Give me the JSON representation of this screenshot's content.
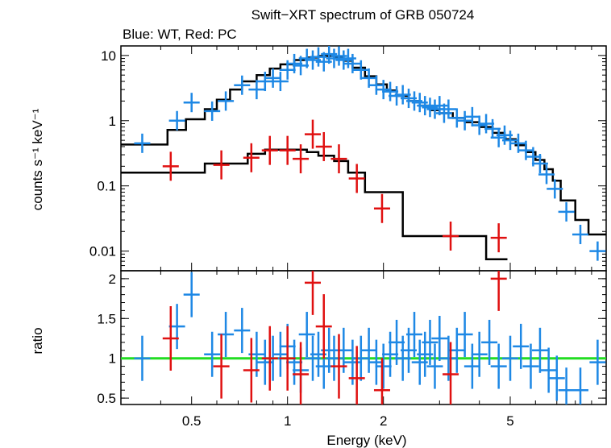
{
  "title": "Swift−XRT spectrum of GRB 050724",
  "subtitle": "Blue: WT, Red: PC",
  "colors": {
    "wt": "#1e88e5",
    "pc": "#e01010",
    "model": "#000000",
    "unity": "#22dd22"
  },
  "chart_data": [
    {
      "type": "scatter",
      "panel": "spectrum",
      "ylabel": "counts s⁻¹ keV⁻¹",
      "xscale": "log",
      "yscale": "log",
      "xlim": [
        0.3,
        10
      ],
      "ylim": [
        0.005,
        14
      ],
      "ytick_labels": [
        "10",
        "1",
        "0.1",
        "0.01"
      ],
      "yticks": [
        10,
        1,
        0.1,
        0.01
      ],
      "series": [
        {
          "name": "WT",
          "color": "#1e88e5",
          "points": [
            [
              0.35,
              0.45
            ],
            [
              0.45,
              1.0
            ],
            [
              0.5,
              1.9
            ],
            [
              0.58,
              1.4
            ],
            [
              0.64,
              2.0
            ],
            [
              0.72,
              3.5
            ],
            [
              0.8,
              3.0
            ],
            [
              0.85,
              4.0
            ],
            [
              0.9,
              4.5
            ],
            [
              0.95,
              4.0
            ],
            [
              1.0,
              6.0
            ],
            [
              1.05,
              7.5
            ],
            [
              1.1,
              7.0
            ],
            [
              1.15,
              9.0
            ],
            [
              1.2,
              8.5
            ],
            [
              1.25,
              9.5
            ],
            [
              1.3,
              8.0
            ],
            [
              1.35,
              10.5
            ],
            [
              1.4,
              9.0
            ],
            [
              1.45,
              9.8
            ],
            [
              1.5,
              8.5
            ],
            [
              1.55,
              9.0
            ],
            [
              1.6,
              7.5
            ],
            [
              1.7,
              6.0
            ],
            [
              1.8,
              4.5
            ],
            [
              1.9,
              3.5
            ],
            [
              2.0,
              3.0
            ],
            [
              2.1,
              2.8
            ],
            [
              2.2,
              2.4
            ],
            [
              2.3,
              2.5
            ],
            [
              2.4,
              2.2
            ],
            [
              2.5,
              2.0
            ],
            [
              2.6,
              1.9
            ],
            [
              2.7,
              1.7
            ],
            [
              2.8,
              1.6
            ],
            [
              2.9,
              1.5
            ],
            [
              3.0,
              1.7
            ],
            [
              3.1,
              1.3
            ],
            [
              3.2,
              1.5
            ],
            [
              3.4,
              1.1
            ],
            [
              3.6,
              1.0
            ],
            [
              3.8,
              1.15
            ],
            [
              4.0,
              0.85
            ],
            [
              4.2,
              0.9
            ],
            [
              4.4,
              0.75
            ],
            [
              4.6,
              0.55
            ],
            [
              4.8,
              0.6
            ],
            [
              5.0,
              0.5
            ],
            [
              5.3,
              0.45
            ],
            [
              5.6,
              0.35
            ],
            [
              5.9,
              0.28
            ],
            [
              6.2,
              0.22
            ],
            [
              6.5,
              0.15
            ],
            [
              6.9,
              0.09
            ],
            [
              7.5,
              0.04
            ],
            [
              8.3,
              0.018
            ],
            [
              9.4,
              0.01
            ]
          ]
        },
        {
          "name": "PC",
          "color": "#e01010",
          "points": [
            [
              0.43,
              0.2
            ],
            [
              0.62,
              0.21
            ],
            [
              0.77,
              0.27
            ],
            [
              0.88,
              0.35
            ],
            [
              1.0,
              0.35
            ],
            [
              1.1,
              0.26
            ],
            [
              1.2,
              0.62
            ],
            [
              1.3,
              0.4
            ],
            [
              1.45,
              0.26
            ],
            [
              1.65,
              0.13
            ],
            [
              1.98,
              0.045
            ],
            [
              3.25,
              0.017
            ],
            [
              4.6,
              0.016
            ]
          ]
        },
        {
          "name": "model",
          "color": "#000000",
          "steps": [
            [
              0.3,
              0.43
            ],
            [
              0.42,
              0.43
            ],
            [
              0.42,
              0.72
            ],
            [
              0.48,
              0.72
            ],
            [
              0.48,
              1.05
            ],
            [
              0.55,
              1.05
            ],
            [
              0.55,
              1.5
            ],
            [
              0.6,
              1.5
            ],
            [
              0.6,
              2.1
            ],
            [
              0.66,
              2.1
            ],
            [
              0.66,
              3.0
            ],
            [
              0.72,
              3.0
            ],
            [
              0.72,
              4.0
            ],
            [
              0.8,
              4.0
            ],
            [
              0.8,
              5.0
            ],
            [
              0.88,
              5.0
            ],
            [
              0.88,
              6.3
            ],
            [
              0.95,
              6.3
            ],
            [
              0.95,
              7.3
            ],
            [
              1.05,
              7.3
            ],
            [
              1.05,
              8.5
            ],
            [
              1.15,
              8.5
            ],
            [
              1.15,
              9.3
            ],
            [
              1.25,
              9.3
            ],
            [
              1.25,
              9.8
            ],
            [
              1.4,
              9.8
            ],
            [
              1.4,
              9.3
            ],
            [
              1.5,
              9.3
            ],
            [
              1.5,
              8.3
            ],
            [
              1.6,
              8.3
            ],
            [
              1.6,
              6.5
            ],
            [
              1.75,
              6.5
            ],
            [
              1.75,
              4.8
            ],
            [
              1.9,
              4.8
            ],
            [
              1.9,
              3.6
            ],
            [
              2.05,
              3.6
            ],
            [
              2.05,
              2.9
            ],
            [
              2.2,
              2.9
            ],
            [
              2.2,
              2.4
            ],
            [
              2.4,
              2.4
            ],
            [
              2.4,
              2.0
            ],
            [
              2.6,
              2.0
            ],
            [
              2.6,
              1.7
            ],
            [
              2.8,
              1.7
            ],
            [
              2.8,
              1.45
            ],
            [
              3.0,
              1.45
            ],
            [
              3.0,
              1.3
            ],
            [
              3.3,
              1.3
            ],
            [
              3.3,
              1.1
            ],
            [
              3.6,
              1.1
            ],
            [
              3.6,
              0.95
            ],
            [
              4.0,
              0.95
            ],
            [
              4.0,
              0.8
            ],
            [
              4.4,
              0.8
            ],
            [
              4.4,
              0.65
            ],
            [
              4.8,
              0.65
            ],
            [
              4.8,
              0.52
            ],
            [
              5.2,
              0.52
            ],
            [
              5.2,
              0.42
            ],
            [
              5.6,
              0.42
            ],
            [
              5.6,
              0.33
            ],
            [
              6.0,
              0.33
            ],
            [
              6.0,
              0.25
            ],
            [
              6.4,
              0.25
            ],
            [
              6.4,
              0.18
            ],
            [
              6.8,
              0.18
            ],
            [
              6.8,
              0.12
            ],
            [
              7.2,
              0.12
            ],
            [
              7.2,
              0.06
            ],
            [
              8.0,
              0.06
            ],
            [
              8.0,
              0.03
            ],
            [
              8.8,
              0.03
            ],
            [
              8.8,
              0.018
            ],
            [
              10,
              0.018
            ]
          ]
        },
        {
          "name": "model",
          "color": "#000000",
          "steps": [
            [
              0.3,
              0.16
            ],
            [
              0.55,
              0.16
            ],
            [
              0.55,
              0.22
            ],
            [
              0.75,
              0.22
            ],
            [
              0.75,
              0.31
            ],
            [
              0.85,
              0.31
            ],
            [
              0.85,
              0.36
            ],
            [
              1.15,
              0.36
            ],
            [
              1.15,
              0.33
            ],
            [
              1.25,
              0.33
            ],
            [
              1.25,
              0.29
            ],
            [
              1.4,
              0.29
            ],
            [
              1.4,
              0.24
            ],
            [
              1.55,
              0.24
            ],
            [
              1.55,
              0.16
            ],
            [
              1.75,
              0.16
            ],
            [
              1.75,
              0.08
            ],
            [
              2.3,
              0.08
            ],
            [
              2.3,
              0.017
            ],
            [
              4.2,
              0.017
            ],
            [
              4.2,
              0.0075
            ],
            [
              4.9,
              0.0075
            ]
          ]
        }
      ]
    },
    {
      "type": "scatter",
      "panel": "ratio",
      "xlabel": "Energy (keV)",
      "ylabel": "ratio",
      "xscale": "log",
      "xlim": [
        0.3,
        10
      ],
      "ylim": [
        0.42,
        2.1
      ],
      "yticks": [
        0.5,
        1,
        1.5,
        2
      ],
      "ytick_labels": [
        "0.5",
        "1",
        "1.5",
        "2"
      ],
      "xticks": [
        0.5,
        1,
        2,
        5
      ],
      "xtick_labels": [
        "0.5",
        "1",
        "2",
        "5"
      ],
      "series": [
        {
          "name": "WT",
          "color": "#1e88e5",
          "points": [
            [
              0.35,
              1.0
            ],
            [
              0.45,
              1.4
            ],
            [
              0.5,
              1.8
            ],
            [
              0.58,
              1.05
            ],
            [
              0.64,
              1.3
            ],
            [
              0.72,
              1.35
            ],
            [
              0.8,
              1.05
            ],
            [
              0.85,
              0.95
            ],
            [
              0.9,
              1.0
            ],
            [
              0.95,
              1.05
            ],
            [
              1.0,
              1.15
            ],
            [
              1.05,
              0.95
            ],
            [
              1.1,
              0.85
            ],
            [
              1.15,
              1.3
            ],
            [
              1.2,
              1.0
            ],
            [
              1.25,
              1.05
            ],
            [
              1.3,
              0.9
            ],
            [
              1.35,
              1.1
            ],
            [
              1.4,
              1.0
            ],
            [
              1.5,
              1.1
            ],
            [
              1.6,
              0.95
            ],
            [
              1.7,
              1.0
            ],
            [
              1.8,
              1.1
            ],
            [
              1.9,
              0.95
            ],
            [
              2.0,
              0.9
            ],
            [
              2.1,
              1.05
            ],
            [
              2.2,
              1.2
            ],
            [
              2.3,
              1.0
            ],
            [
              2.4,
              1.1
            ],
            [
              2.5,
              1.3
            ],
            [
              2.6,
              0.95
            ],
            [
              2.7,
              1.05
            ],
            [
              2.8,
              1.2
            ],
            [
              2.9,
              0.9
            ],
            [
              3.0,
              1.25
            ],
            [
              3.2,
              1.0
            ],
            [
              3.4,
              1.1
            ],
            [
              3.6,
              1.3
            ],
            [
              3.8,
              0.9
            ],
            [
              4.0,
              1.05
            ],
            [
              4.3,
              1.2
            ],
            [
              4.6,
              0.9
            ],
            [
              5.0,
              1.0
            ],
            [
              5.4,
              1.15
            ],
            [
              5.8,
              0.9
            ],
            [
              6.2,
              1.1
            ],
            [
              6.6,
              0.85
            ],
            [
              7.0,
              0.75
            ],
            [
              7.5,
              0.6
            ],
            [
              8.3,
              0.6
            ],
            [
              9.4,
              0.95
            ]
          ]
        },
        {
          "name": "PC",
          "color": "#e01010",
          "points": [
            [
              0.43,
              1.25
            ],
            [
              0.62,
              0.9
            ],
            [
              0.77,
              0.85
            ],
            [
              0.88,
              1.0
            ],
            [
              1.0,
              1.0
            ],
            [
              1.1,
              0.8
            ],
            [
              1.2,
              1.95
            ],
            [
              1.3,
              1.4
            ],
            [
              1.45,
              0.9
            ],
            [
              1.65,
              0.75
            ],
            [
              1.98,
              0.6
            ],
            [
              3.25,
              0.8
            ],
            [
              4.6,
              2.0
            ]
          ]
        }
      ]
    }
  ]
}
